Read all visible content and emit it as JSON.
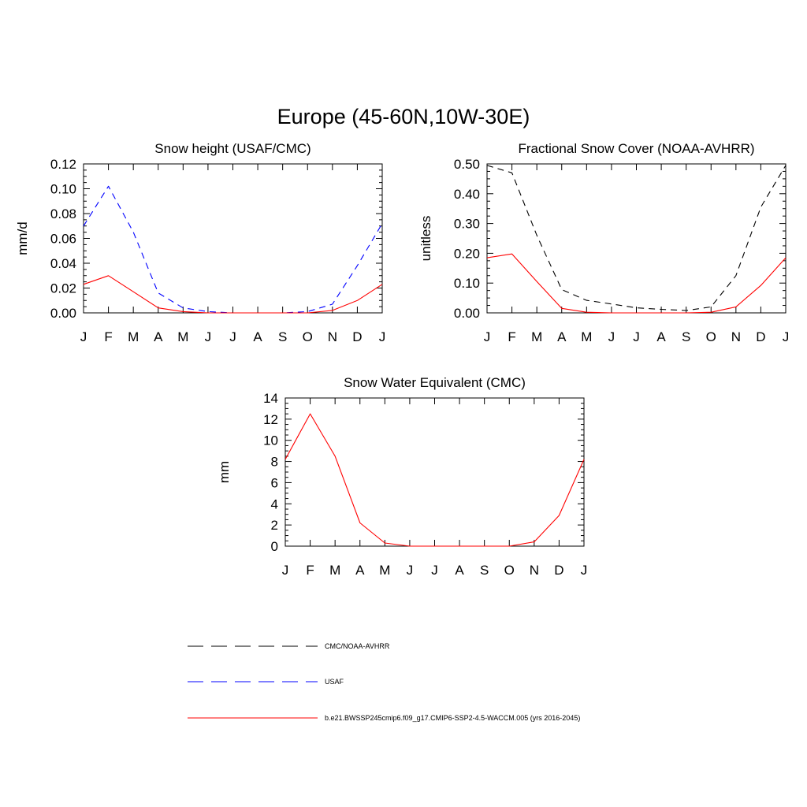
{
  "page": {
    "title": "Europe (45-60N,10W-30E)"
  },
  "colors": {
    "obs_black": "#000000",
    "usaf_blue": "#0000ff",
    "model_red": "#ff0000"
  },
  "legend": [
    {
      "label": "CMC/NOAA-AVHRR",
      "color": "#000000",
      "dash": "dashed"
    },
    {
      "label": "USAF",
      "color": "#0000ff",
      "dash": "dashed"
    },
    {
      "label": "b.e21.BWSSP245cmip6.f09_g17.CMIP6-SSP2-4.5-WACCM.005 (yrs 2016-2045)",
      "color": "#ff0000",
      "dash": "solid"
    }
  ],
  "chart_data": [
    {
      "type": "line",
      "title": "Snow height (USAF/CMC)",
      "ylabel": "mm/d",
      "xlabel": "",
      "categories": [
        "J",
        "F",
        "M",
        "A",
        "M",
        "J",
        "J",
        "A",
        "S",
        "O",
        "N",
        "D",
        "J"
      ],
      "ylim": [
        0,
        0.12
      ],
      "yticks": [
        "0.00",
        "0.02",
        "0.04",
        "0.06",
        "0.08",
        "0.10",
        "0.12"
      ],
      "series": [
        {
          "name": "CMC/NOAA-AVHRR",
          "color": "#000000",
          "dash": "dashed",
          "values": [
            0,
            0,
            0,
            0,
            0,
            0,
            0,
            0,
            0,
            0,
            0,
            0,
            0
          ]
        },
        {
          "name": "USAF",
          "color": "#0000ff",
          "dash": "dashed",
          "values": [
            0.07,
            0.102,
            0.065,
            0.016,
            0.004,
            0.001,
            0,
            0,
            0,
            0.001,
            0.007,
            0.038,
            0.072
          ]
        },
        {
          "name": "b.e21.BWSSP245cmip6.f09_g17.CMIP6-SSP2-4.5-WACCM.005 (yrs 2016-2045)",
          "color": "#ff0000",
          "dash": "solid",
          "values": [
            0.023,
            0.03,
            0.017,
            0.004,
            0.001,
            0,
            0,
            0,
            0,
            0,
            0.002,
            0.01,
            0.023
          ]
        }
      ]
    },
    {
      "type": "line",
      "title": "Fractional Snow Cover (NOAA-AVHRR)",
      "ylabel": "unitless",
      "xlabel": "",
      "categories": [
        "J",
        "F",
        "M",
        "A",
        "M",
        "J",
        "J",
        "A",
        "S",
        "O",
        "N",
        "D",
        "J"
      ],
      "ylim": [
        0,
        0.5
      ],
      "yticks": [
        "0.00",
        "0.10",
        "0.20",
        "0.30",
        "0.40",
        "0.50"
      ],
      "series": [
        {
          "name": "CMC/NOAA-AVHRR",
          "color": "#000000",
          "dash": "dashed",
          "values": [
            0.495,
            0.47,
            0.26,
            0.078,
            0.042,
            0.03,
            0.017,
            0.012,
            0.008,
            0.02,
            0.125,
            0.355,
            0.495
          ]
        },
        {
          "name": "b.e21.BWSSP245cmip6.f09_g17.CMIP6-SSP2-4.5-WACCM.005 (yrs 2016-2045)",
          "color": "#ff0000",
          "dash": "solid",
          "values": [
            0.185,
            0.198,
            0.105,
            0.015,
            0.002,
            0,
            0,
            0,
            0,
            0.002,
            0.02,
            0.092,
            0.185
          ]
        }
      ]
    },
    {
      "type": "line",
      "title": "Snow Water Equivalent (CMC)",
      "ylabel": "mm",
      "xlabel": "",
      "categories": [
        "J",
        "F",
        "M",
        "A",
        "M",
        "J",
        "J",
        "A",
        "S",
        "O",
        "N",
        "D",
        "J"
      ],
      "ylim": [
        0,
        14
      ],
      "yticks": [
        "0",
        "2",
        "4",
        "6",
        "8",
        "10",
        "12",
        "14"
      ],
      "series": [
        {
          "name": "CMC/NOAA-AVHRR",
          "color": "#000000",
          "dash": "dashed",
          "values": [
            0,
            0,
            0,
            0,
            0,
            0,
            0,
            0,
            0,
            0,
            0,
            0,
            0
          ]
        },
        {
          "name": "b.e21.BWSSP245cmip6.f09_g17.CMIP6-SSP2-4.5-WACCM.005 (yrs 2016-2045)",
          "color": "#ff0000",
          "dash": "solid",
          "values": [
            8.2,
            12.5,
            8.5,
            2.2,
            0.3,
            0,
            0,
            0,
            0,
            0,
            0.4,
            2.9,
            8.2
          ]
        }
      ]
    }
  ]
}
